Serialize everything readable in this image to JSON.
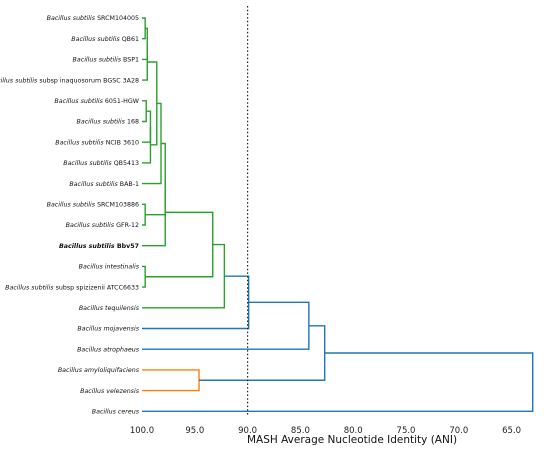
{
  "chart_data": {
    "type": "dendrogram",
    "xlabel": "MASH Average Nucleotide Identity (ANI)",
    "xlim": [
      100.0,
      62.5
    ],
    "xticks": [
      "100.0",
      "95.0",
      "90.0",
      "85.0",
      "80.0",
      "75.0",
      "70.0",
      "65.0"
    ],
    "tick_values": [
      100,
      95,
      90,
      85,
      80,
      75,
      70,
      65
    ],
    "threshold": 90.0,
    "colors": {
      "green": "#2ca02c",
      "orange": "#ff7f0e",
      "blue": "#1f77b4",
      "threshold": "#222222"
    },
    "leaves": [
      {
        "species": "Bacillus subtilis",
        "strain": "SRCM104005"
      },
      {
        "species": "Bacillus subtilis",
        "strain": "QB61"
      },
      {
        "species": "Bacillus subtilis",
        "strain": "BSP1"
      },
      {
        "species": "Bacillus subtilis",
        "strain": "subsp inaquosorum BGSC 3A28"
      },
      {
        "species": "Bacillus subtilis",
        "strain": "6051-HGW"
      },
      {
        "species": "Bacillus subtilis",
        "strain": "168"
      },
      {
        "species": "Bacillus subtilis",
        "strain": "NCIB 3610"
      },
      {
        "species": "Bacillus subtilis",
        "strain": "QB5413"
      },
      {
        "species": "Bacillus subtilis",
        "strain": "BAB-1"
      },
      {
        "species": "Bacillus subtilis",
        "strain": "SRCM103886"
      },
      {
        "species": "Bacillus subtilis",
        "strain": "GFR-12"
      },
      {
        "species": "Bacillus subtilis",
        "strain": "Bbv57",
        "bold": true
      },
      {
        "species": "Bacillus intestinalis",
        "strain": ""
      },
      {
        "species": "Bacillus subtilis",
        "strain": "subsp spizizenii ATCC6633"
      },
      {
        "species": "Bacillus tequilensis",
        "strain": ""
      },
      {
        "species": "Bacillus mojavensis",
        "strain": ""
      },
      {
        "species": "Bacillus atrophaeus",
        "strain": ""
      },
      {
        "species": "Bacillus amyloliquifaciens",
        "strain": ""
      },
      {
        "species": "Bacillus velezensis",
        "strain": ""
      },
      {
        "species": "Bacillus cereus",
        "strain": ""
      }
    ],
    "merges": [
      {
        "a": 0,
        "b": 1,
        "ani": 99.7,
        "color": "green"
      },
      {
        "a": 20,
        "b": 2,
        "ani": 99.5,
        "color": "green"
      },
      {
        "a": 21,
        "b": 3,
        "ani": 99.5,
        "color": "green"
      },
      {
        "a": 4,
        "b": 5,
        "ani": 99.6,
        "color": "green"
      },
      {
        "a": 23,
        "b": 6,
        "ani": 99.2,
        "color": "green"
      },
      {
        "a": 24,
        "b": 7,
        "ani": 99.2,
        "color": "green"
      },
      {
        "a": 22,
        "b": 25,
        "ani": 98.6,
        "color": "green"
      },
      {
        "a": 26,
        "b": 8,
        "ani": 98.2,
        "color": "green"
      },
      {
        "a": 9,
        "b": 10,
        "ani": 99.7,
        "color": "green"
      },
      {
        "a": 27,
        "b": 28,
        "ani": 97.8,
        "color": "green"
      },
      {
        "a": 29,
        "b": 11,
        "ani": 97.8,
        "color": "green"
      },
      {
        "a": 12,
        "b": 13,
        "ani": 99.7,
        "color": "green"
      },
      {
        "a": 30,
        "b": 31,
        "ani": 93.3,
        "color": "green"
      },
      {
        "a": 32,
        "b": 14,
        "ani": 92.2,
        "color": "green"
      },
      {
        "a": 33,
        "b": 15,
        "ani": 89.9,
        "color": "blue"
      },
      {
        "a": 34,
        "b": 16,
        "ani": 84.2,
        "color": "blue"
      },
      {
        "a": 17,
        "b": 18,
        "ani": 94.6,
        "color": "orange"
      },
      {
        "a": 35,
        "b": 36,
        "ani": 82.7,
        "color": "blue"
      },
      {
        "a": 37,
        "b": 19,
        "ani": 63.0,
        "color": "blue"
      }
    ]
  }
}
